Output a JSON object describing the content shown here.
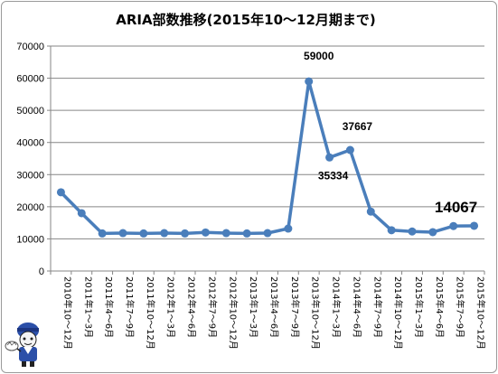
{
  "chart_data": {
    "type": "line",
    "title": "ARIA部数推移(2015年10～12月期まで)",
    "categories": [
      "2010年10～12月",
      "2011年1～3月",
      "2011年4～6月",
      "2011年7～9月",
      "2011年10～12月",
      "2012年1～3月",
      "2012年4～6月",
      "2012年7～9月",
      "2012年10～12月",
      "2013年1～3月",
      "2013年4～6月",
      "2013年7～9月",
      "2013年10～12月",
      "2014年1～3月",
      "2014年4～6月",
      "2014年7～9月",
      "2014年10～12月",
      "2015年1～3月",
      "2015年4～6月",
      "2015年7～9月",
      "2015年10～12月"
    ],
    "series": [
      {
        "values": [
          24500,
          18000,
          11700,
          11800,
          11700,
          11800,
          11700,
          12000,
          11800,
          11700,
          11800,
          13200,
          59000,
          35334,
          37667,
          18500,
          12700,
          12300,
          12100,
          14000,
          14067
        ]
      }
    ],
    "ylim": [
      0,
      70000
    ],
    "yticks": [
      0,
      10000,
      20000,
      30000,
      40000,
      50000,
      60000,
      70000
    ],
    "grid": true,
    "legend": "none",
    "data_labels": [
      {
        "index": 12,
        "text": "59000"
      },
      {
        "index": 13,
        "text": "35334"
      },
      {
        "index": 14,
        "text": "37667"
      },
      {
        "index": 20,
        "text": "14067"
      }
    ],
    "colors": {
      "line": "#4a7ebb",
      "grid": "#868686",
      "axis": "#868686"
    }
  }
}
